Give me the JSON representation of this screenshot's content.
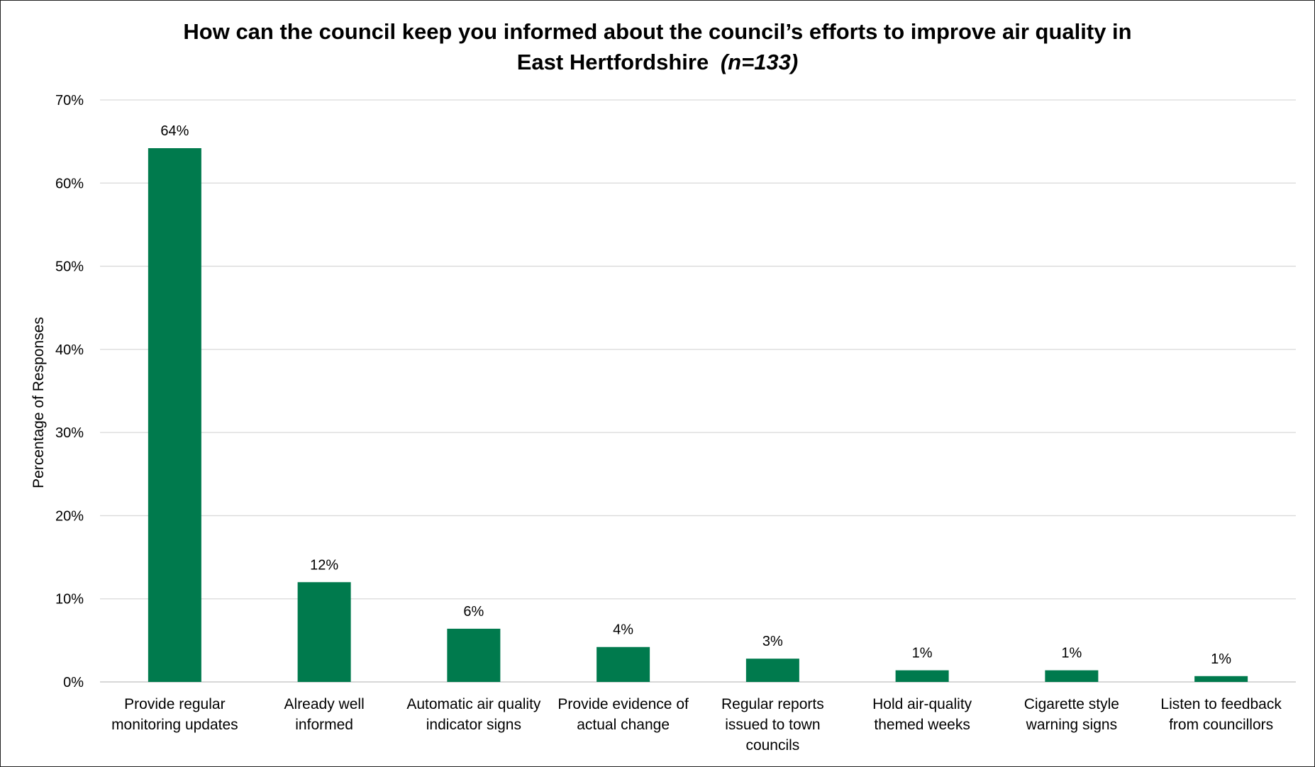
{
  "chart_data": {
    "type": "bar",
    "title_line1": "How can the council keep you informed about the council’s efforts to improve air quality in",
    "title_line2": "East Hertfordshire",
    "title_note": "(n=133)",
    "xlabel": "",
    "ylabel": "Percentage of Responses",
    "ylim": [
      0,
      70
    ],
    "yticks": [
      0,
      10,
      20,
      30,
      40,
      50,
      60,
      70
    ],
    "ytick_labels": [
      "0%",
      "10%",
      "20%",
      "30%",
      "40%",
      "50%",
      "60%",
      "70%"
    ],
    "grid": true,
    "legend": "none",
    "bar_color": "#007A4D",
    "categories": [
      [
        "Provide regular",
        "monitoring updates"
      ],
      [
        "Already well",
        "informed"
      ],
      [
        "Automatic air quality",
        "indicator signs"
      ],
      [
        "Provide evidence of",
        "actual change"
      ],
      [
        "Regular reports",
        "issued to town",
        "councils"
      ],
      [
        "Hold air-quality",
        "themed weeks"
      ],
      [
        "Cigarette style",
        "warning signs"
      ],
      [
        "Listen to feedback",
        "from councillors"
      ]
    ],
    "values": [
      64.2,
      12.0,
      6.4,
      4.2,
      2.8,
      1.4,
      1.4,
      0.7
    ],
    "data_labels": [
      "64%",
      "12%",
      "6%",
      "4%",
      "3%",
      "1%",
      "1%",
      "1%"
    ]
  }
}
